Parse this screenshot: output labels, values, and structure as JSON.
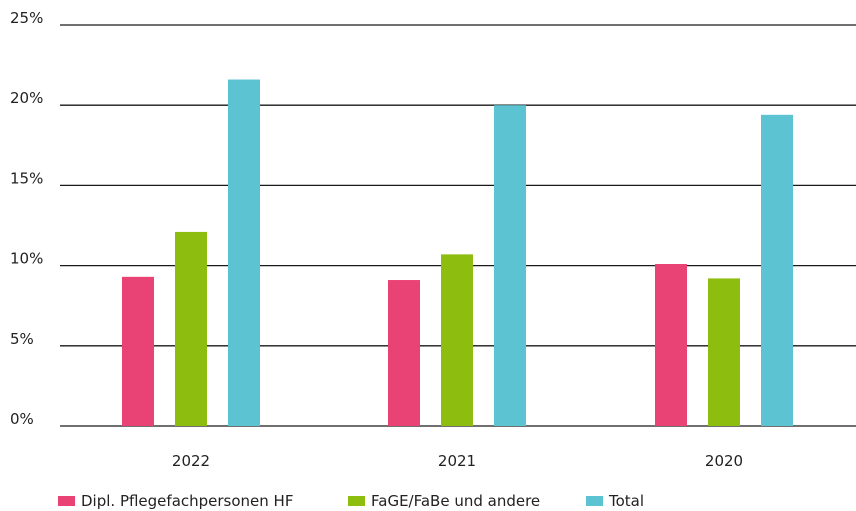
{
  "chart_data": {
    "type": "bar",
    "categories": [
      "2022",
      "2021",
      "2020"
    ],
    "series": [
      {
        "name": "Dipl. Pflegefachpersonen HF",
        "values": [
          9.3,
          9.1,
          10.1
        ],
        "color": "#e94274"
      },
      {
        "name": "FaGE/FaBe und andere",
        "values": [
          12.1,
          10.7,
          9.2
        ],
        "color": "#8cbd0f"
      },
      {
        "name": "Total",
        "values": [
          21.6,
          20.0,
          19.4
        ],
        "color": "#5bc3d1"
      }
    ],
    "yticks": [
      0,
      5,
      10,
      15,
      20,
      25
    ],
    "ytick_labels": [
      "0%",
      "5%",
      "10%",
      "15%",
      "20%",
      "25%"
    ],
    "ylim": [
      0,
      25
    ],
    "grid": true,
    "legend_position": "bottom-left",
    "title": "",
    "xlabel": "",
    "ylabel": ""
  }
}
